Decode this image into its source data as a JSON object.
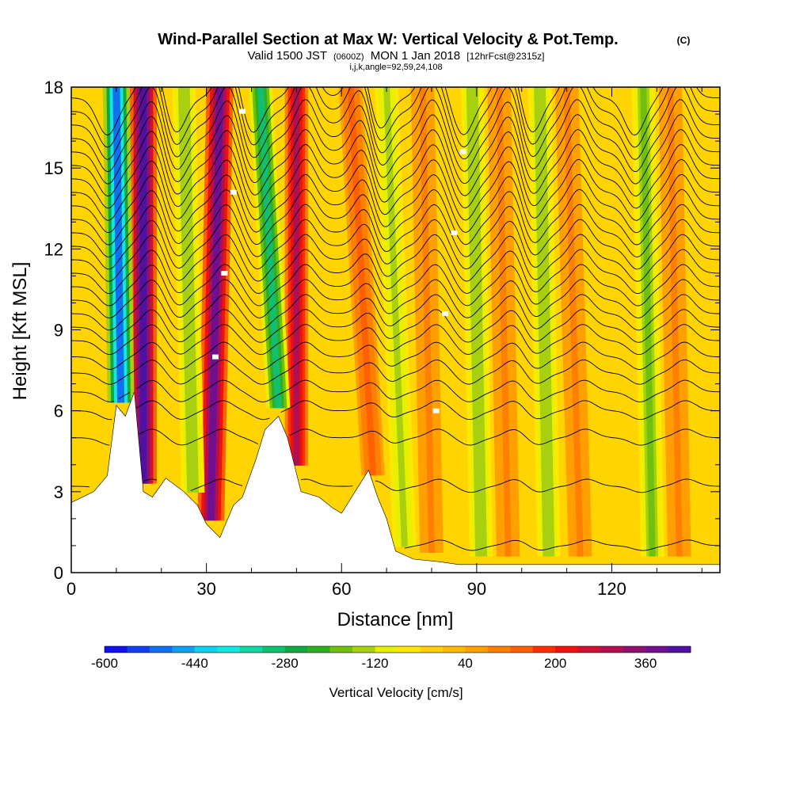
{
  "chart_data": {
    "type": "heatmap",
    "title": "Wind-Parallel Section at Max W: Vertical Velocity & Pot.Temp.",
    "copyright": "(C)",
    "subtitle_parts": {
      "valid_label": "Valid 1500 JST",
      "utc_time": "(0600Z)",
      "date": "MON 1 Jan 2018",
      "forecast": "[12hrFcst@2315z]"
    },
    "params": "i,j,k,angle=92,59,24,108",
    "xlabel": "Distance [nm]",
    "ylabel": "Height [Kft MSL]",
    "xlim": [
      0,
      144
    ],
    "ylim": [
      0,
      18
    ],
    "x_ticks": [
      "0",
      "30",
      "60",
      "90",
      "120"
    ],
    "y_ticks": [
      "0",
      "3",
      "6",
      "9",
      "12",
      "15",
      "18"
    ],
    "colorbar": {
      "label": "Vertical Velocity [cm/s]",
      "tick_labels": [
        "-600",
        "-440",
        "-280",
        "-120",
        "40",
        "200",
        "360"
      ],
      "colors": [
        "#1010f0",
        "#1040f0",
        "#1070f0",
        "#10a0f0",
        "#10d0f0",
        "#10e8e0",
        "#10d8a0",
        "#10c070",
        "#10a840",
        "#30b020",
        "#70c010",
        "#a8d010",
        "#e8f000",
        "#ffe800",
        "#ffd000",
        "#ffb800",
        "#ffa000",
        "#ff8000",
        "#ff6000",
        "#ff3000",
        "#f01010",
        "#d01030",
        "#b01050",
        "#901070",
        "#701090",
        "#5010a0"
      ]
    },
    "terrain_kft": [
      [
        0,
        2.6
      ],
      [
        5,
        3.0
      ],
      [
        8,
        3.6
      ],
      [
        10,
        6.2
      ],
      [
        12,
        5.8
      ],
      [
        14,
        6.7
      ],
      [
        16,
        3.0
      ],
      [
        18,
        2.8
      ],
      [
        21,
        3.5
      ],
      [
        25,
        3.0
      ],
      [
        28,
        2.5
      ],
      [
        30,
        1.8
      ],
      [
        33,
        1.3
      ],
      [
        36,
        2.5
      ],
      [
        38,
        2.8
      ],
      [
        41,
        4.2
      ],
      [
        43,
        5.3
      ],
      [
        46,
        5.8
      ],
      [
        48,
        5.0
      ],
      [
        51,
        3.0
      ],
      [
        55,
        2.8
      ],
      [
        58,
        2.4
      ],
      [
        60,
        2.2
      ],
      [
        63,
        3.0
      ],
      [
        66,
        3.8
      ],
      [
        68,
        2.8
      ],
      [
        70,
        2.0
      ],
      [
        72,
        0.8
      ],
      [
        76,
        0.5
      ],
      [
        82,
        0.4
      ],
      [
        86,
        0.3
      ],
      [
        144,
        0.3
      ]
    ],
    "updraft_axes": [
      {
        "x_base": 16,
        "x_top": 16,
        "w_cms": 440
      },
      {
        "x_base": 31,
        "x_top": 33,
        "w_cms": 360
      },
      {
        "x_base": 50,
        "x_top": 50,
        "w_cms": 300
      },
      {
        "x_base": 67,
        "x_top": 62,
        "w_cms": 120
      },
      {
        "x_base": 80,
        "x_top": 78,
        "w_cms": 80
      },
      {
        "x_base": 97,
        "x_top": 95,
        "w_cms": 80
      },
      {
        "x_base": 113,
        "x_top": 110,
        "w_cms": 80
      },
      {
        "x_base": 135,
        "x_top": 133,
        "w_cms": 80
      }
    ],
    "downdraft_axes": [
      {
        "x_base": 11,
        "x_top": 10,
        "w_cms": -520
      },
      {
        "x_base": 27,
        "x_top": 25,
        "w_cms": -160
      },
      {
        "x_base": 46,
        "x_top": 42,
        "w_cms": -300
      },
      {
        "x_base": 74,
        "x_top": 70,
        "w_cms": -140
      },
      {
        "x_base": 91,
        "x_top": 89,
        "w_cms": -160
      },
      {
        "x_base": 106,
        "x_top": 104,
        "w_cms": -160
      },
      {
        "x_base": 129,
        "x_top": 127,
        "w_cms": -200
      }
    ],
    "isentrope_heights_kft": [
      1.0,
      3.2,
      5.0,
      6.0,
      6.7,
      7.4,
      8.0,
      8.6,
      9.1,
      9.6,
      10.1,
      10.6,
      11.1,
      11.6,
      12.1,
      12.6,
      13.1,
      13.6,
      14.1,
      14.6,
      15.1,
      15.6,
      16.1,
      16.6,
      17.1,
      17.6
    ]
  }
}
